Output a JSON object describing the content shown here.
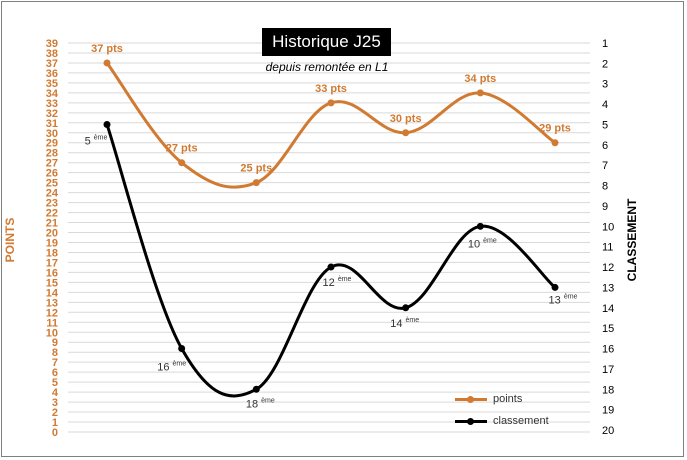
{
  "chart_data": {
    "type": "line",
    "title": "Historique J25",
    "subtitle": "depuis remontée en L1",
    "ylabel_left": "POINTS",
    "ylabel_right": "CLASSEMENT",
    "left_axis": {
      "min": 0,
      "max": 39,
      "ticks": [
        "0",
        "1",
        "2",
        "3",
        "4",
        "5",
        "6",
        "7",
        "8",
        "9",
        "10",
        "11",
        "12",
        "13",
        "14",
        "15",
        "16",
        "17",
        "18",
        "19",
        "20",
        "21",
        "22",
        "23",
        "24",
        "25",
        "26",
        "27",
        "28",
        "29",
        "30",
        "31",
        "32",
        "33",
        "34",
        "35",
        "36",
        "37",
        "38",
        "39"
      ]
    },
    "right_axis": {
      "min": 1,
      "max": 20,
      "reversed": true,
      "ticks": [
        "1",
        "2",
        "3",
        "4",
        "5",
        "6",
        "7",
        "8",
        "9",
        "10",
        "11",
        "12",
        "13",
        "14",
        "15",
        "16",
        "17",
        "18",
        "19",
        "20"
      ]
    },
    "series": [
      {
        "name": "points",
        "color": "#d07a32",
        "axis": "left",
        "values": [
          37,
          27,
          25,
          33,
          30,
          34,
          29
        ],
        "labels": [
          "37 pts",
          "27 pts",
          "25 pts",
          "33 pts",
          "30 pts",
          "34 pts",
          "29 pts"
        ]
      },
      {
        "name": "classement",
        "color": "#000000",
        "axis": "right",
        "values": [
          5,
          16,
          18,
          12,
          14,
          10,
          13
        ],
        "labels": [
          {
            "num": "5",
            "sup": "ème"
          },
          {
            "num": "16",
            "sup": "ème"
          },
          {
            "num": "18",
            "sup": "ème"
          },
          {
            "num": "12",
            "sup": "ème"
          },
          {
            "num": "14",
            "sup": "ème"
          },
          {
            "num": "10",
            "sup": "ème"
          },
          {
            "num": "13",
            "sup": "ème"
          }
        ]
      }
    ],
    "grid": true,
    "legend_position": "bottom-right"
  }
}
